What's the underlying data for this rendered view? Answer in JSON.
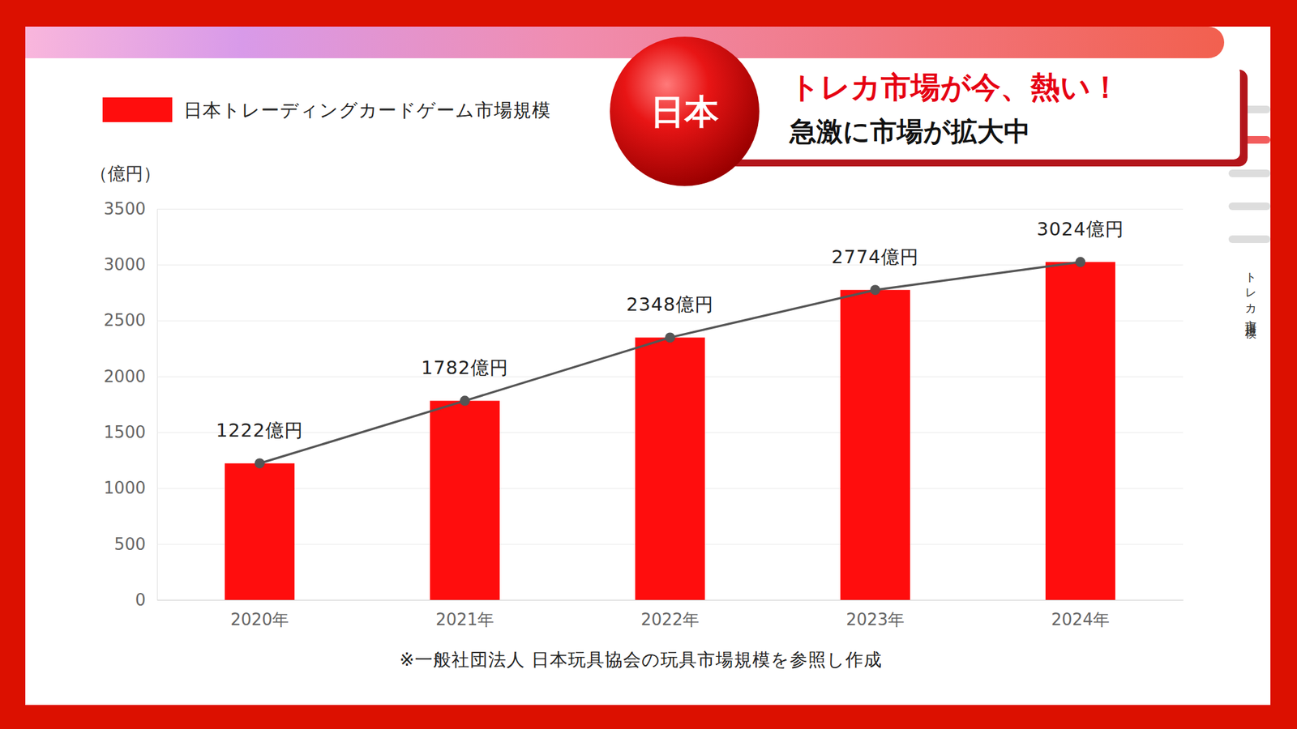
{
  "chart_data": {
    "type": "bar",
    "title": "トレカ市場が今、熱い！",
    "subtitle": "急激に市場が拡大中",
    "ylabel": "（億円）",
    "annotations": [
      "日本",
      "トレカ市場規模",
      "※一般社団法人 日本玩具協会の玩具市場規模を参照し作成"
    ],
    "categories": [
      "2020年",
      "2021年",
      "2022年",
      "2023年",
      "2024年"
    ],
    "series": [
      {
        "name": "日本トレーディングカードゲーム市場規模",
        "type": "bar",
        "color": "#ff0d0d",
        "values": [
          1222,
          1782,
          2348,
          2774,
          3024
        ]
      },
      {
        "type": "line",
        "color": "#555555",
        "marker": "circle",
        "line_style": "solid",
        "values": [
          1222,
          1782,
          2348,
          2774,
          3024
        ],
        "value_labels": [
          "1222億円",
          "1782億円",
          "2348億円",
          "2774億円",
          "3024億円"
        ]
      }
    ],
    "ylim": [
      0,
      3500
    ],
    "yticks": [
      0,
      500,
      1000,
      1500,
      2000,
      2500,
      3000,
      3500
    ],
    "grid": true,
    "legend": "top-left",
    "data_labels": true
  }
}
